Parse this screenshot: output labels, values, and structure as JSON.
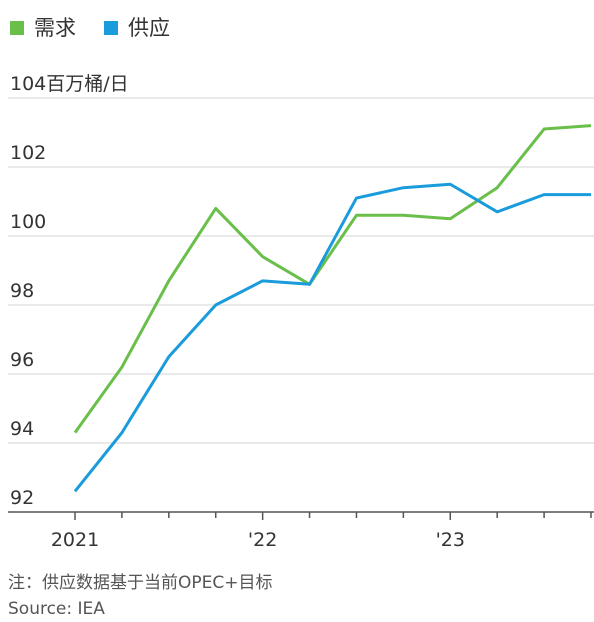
{
  "chart_data": {
    "type": "line",
    "categories": [
      "2021",
      null,
      null,
      null,
      "'22",
      null,
      null,
      null,
      "'23",
      null,
      null,
      null
    ],
    "series": [
      {
        "name": "需求",
        "color": "#6abf4b",
        "values": [
          94.3,
          96.2,
          98.7,
          100.8,
          99.4,
          98.6,
          100.6,
          100.6,
          100.5,
          101.4,
          103.1,
          103.2
        ]
      },
      {
        "name": "供应",
        "color": "#1a9bdb",
        "values": [
          92.6,
          94.3,
          96.5,
          98.0,
          98.7,
          98.6,
          101.1,
          101.4,
          101.5,
          100.7,
          101.2,
          101.2
        ]
      }
    ],
    "ylim": [
      92,
      104
    ],
    "yticks": [
      92,
      94,
      96,
      98,
      100,
      102,
      {
        "value": 104,
        "label": "104百万桶/日"
      }
    ],
    "grid": true,
    "legend": "top-left",
    "notes": [
      "注：供应数据基于当前OPEC+目标",
      "Source: IEA"
    ]
  }
}
